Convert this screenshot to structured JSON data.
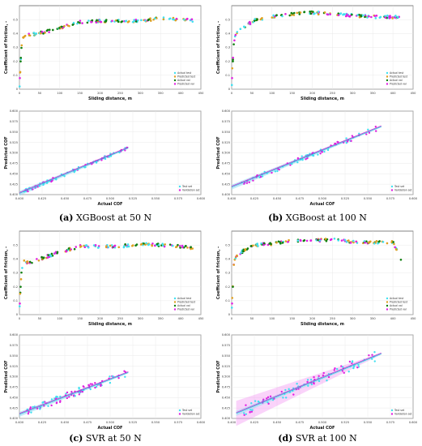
{
  "captions": [
    {
      "letter": "(a)",
      "text": "XGBoost at 50 N"
    },
    {
      "letter": "(b)",
      "text": "XGBoost at 100 N"
    },
    {
      "letter": "(c)",
      "text": "SVR at 50 N"
    },
    {
      "letter": "(d)",
      "text": "SVR at 100 N"
    }
  ],
  "colors": {
    "actual_test": "#40e0f0",
    "predicted_test": "#e0a020",
    "actual_val": "#108010",
    "predicted_val": "#e020e0"
  },
  "chart_data": [
    {
      "type": "scatter",
      "id": "a-top",
      "xlabel": "Sliding distance, m",
      "ylabel": "Coefficient of friction, -",
      "xlim": [
        0,
        450
      ],
      "ylim": [
        0,
        0.6
      ],
      "xticks": [
        "0",
        "50",
        "100",
        "150",
        "200",
        "250",
        "300",
        "350",
        "400",
        "450"
      ],
      "yticks": [
        "0",
        "0.1",
        "0.2",
        "0.3",
        "0.4",
        "0.5"
      ],
      "legend": [
        "Actual test",
        "Predicted test",
        "Actual val",
        "Predicted val"
      ],
      "legend_position": "bottom-right",
      "profile": [
        [
          0,
          0.02
        ],
        [
          2,
          0.12
        ],
        [
          5,
          0.3
        ],
        [
          10,
          0.38
        ],
        [
          25,
          0.39
        ],
        [
          60,
          0.41
        ],
        [
          100,
          0.44
        ],
        [
          140,
          0.48
        ],
        [
          200,
          0.49
        ],
        [
          250,
          0.49
        ],
        [
          300,
          0.49
        ],
        [
          350,
          0.51
        ],
        [
          400,
          0.5
        ],
        [
          430,
          0.495
        ]
      ]
    },
    {
      "type": "scatter",
      "id": "b-top",
      "xlabel": "Sliding distance, m",
      "ylabel": "Coefficient of friction, -",
      "xlim": [
        0,
        450
      ],
      "ylim": [
        0,
        0.6
      ],
      "xticks": [
        "0",
        "50",
        "100",
        "150",
        "200",
        "250",
        "300",
        "350",
        "400",
        "450"
      ],
      "yticks": [
        "0",
        "0.1",
        "0.2",
        "0.3",
        "0.4",
        "0.5"
      ],
      "legend": [
        "Actual test",
        "Predicted test",
        "Actual val",
        "Predicted val"
      ],
      "legend_position": "bottom-right",
      "profile": [
        [
          0,
          0.03
        ],
        [
          2,
          0.15
        ],
        [
          5,
          0.32
        ],
        [
          10,
          0.4
        ],
        [
          30,
          0.45
        ],
        [
          60,
          0.5
        ],
        [
          100,
          0.52
        ],
        [
          150,
          0.54
        ],
        [
          200,
          0.55
        ],
        [
          250,
          0.54
        ],
        [
          300,
          0.53
        ],
        [
          350,
          0.52
        ],
        [
          400,
          0.52
        ],
        [
          420,
          0.52
        ]
      ]
    },
    {
      "type": "regression",
      "id": "a-bottom",
      "xlabel": "Actual COF",
      "ylabel": "Predicted COF",
      "xlim": [
        0.4,
        0.6
      ],
      "ylim": [
        0.4,
        0.6
      ],
      "xticks": [
        "0.400",
        "0.425",
        "0.450",
        "0.475",
        "0.500",
        "0.525",
        "0.550",
        "0.575",
        "0.600"
      ],
      "yticks": [
        "0.400",
        "0.425",
        "0.450",
        "0.475",
        "0.500",
        "0.525",
        "0.550",
        "0.575",
        "0.600"
      ],
      "legend": [
        "Test set",
        "Validation set"
      ],
      "legend_position": "bottom-right",
      "fit": {
        "x0": 0.4,
        "x1": 0.52,
        "y0": 0.403,
        "y1": 0.512
      },
      "cloud": {
        "x0": 0.405,
        "x1": 0.52,
        "spread": 0.004
      }
    },
    {
      "type": "regression",
      "id": "b-bottom",
      "xlabel": "Actual COF",
      "ylabel": "Predicted COF",
      "xlim": [
        0.4,
        0.6
      ],
      "ylim": [
        0.4,
        0.6
      ],
      "xticks": [
        "0.400",
        "0.425",
        "0.450",
        "0.475",
        "0.500",
        "0.525",
        "0.550",
        "0.575",
        "0.600"
      ],
      "yticks": [
        "0.400",
        "0.425",
        "0.450",
        "0.475",
        "0.500",
        "0.525",
        "0.550",
        "0.575",
        "0.600"
      ],
      "legend": [
        "Test set",
        "Validation set"
      ],
      "legend_position": "bottom-right",
      "fit": {
        "x0": 0.4,
        "x1": 0.565,
        "y0": 0.418,
        "y1": 0.563
      },
      "cloud": {
        "x0": 0.41,
        "x1": 0.56,
        "spread": 0.006
      }
    },
    {
      "type": "scatter",
      "id": "c-top",
      "xlabel": "Sliding distance, m",
      "ylabel": "Coefficient of friction, -",
      "xlim": [
        0,
        450
      ],
      "ylim": [
        0,
        0.6
      ],
      "xticks": [
        "0",
        "50",
        "100",
        "150",
        "200",
        "250",
        "300",
        "350",
        "400",
        "450"
      ],
      "yticks": [
        "0",
        "0.1",
        "0.2",
        "0.3",
        "0.4",
        "0.5"
      ],
      "legend": [
        "Actual test",
        "Predicted test",
        "Actual val",
        "Predicted val"
      ],
      "legend_position": "bottom-right",
      "profile": [
        [
          0,
          0.06
        ],
        [
          2,
          0.15
        ],
        [
          5,
          0.3
        ],
        [
          10,
          0.38
        ],
        [
          25,
          0.37
        ],
        [
          60,
          0.41
        ],
        [
          100,
          0.45
        ],
        [
          150,
          0.49
        ],
        [
          200,
          0.49
        ],
        [
          250,
          0.49
        ],
        [
          300,
          0.51
        ],
        [
          350,
          0.5
        ],
        [
          400,
          0.49
        ],
        [
          430,
          0.48
        ]
      ]
    },
    {
      "type": "scatter",
      "id": "d-top",
      "xlabel": "Sliding distance, m",
      "ylabel": "Coefficient of friction, -",
      "xlim": [
        0,
        450
      ],
      "ylim": [
        0,
        0.6
      ],
      "xticks": [
        "0",
        "50",
        "100",
        "150",
        "200",
        "250",
        "300",
        "350",
        "400",
        "450"
      ],
      "yticks": [
        "0",
        "0.1",
        "0.2",
        "0.3",
        "0.4",
        "0.5"
      ],
      "legend": [
        "Actual test",
        "Predicted test",
        "Actual val",
        "Predicted val"
      ],
      "legend_position": "bottom-right",
      "profile": [
        [
          0,
          0.05
        ],
        [
          2,
          0.12
        ],
        [
          5,
          0.35
        ],
        [
          10,
          0.42
        ],
        [
          30,
          0.46
        ],
        [
          60,
          0.5
        ],
        [
          100,
          0.51
        ],
        [
          150,
          0.53
        ],
        [
          200,
          0.53
        ],
        [
          250,
          0.54
        ],
        [
          300,
          0.52
        ],
        [
          350,
          0.52
        ],
        [
          400,
          0.52
        ],
        [
          420,
          0.4
        ]
      ]
    },
    {
      "type": "regression",
      "id": "c-bottom",
      "xlabel": "Actual COF",
      "ylabel": "Predicted COF",
      "xlim": [
        0.4,
        0.6
      ],
      "ylim": [
        0.4,
        0.6
      ],
      "xticks": [
        "0.400",
        "0.425",
        "0.450",
        "0.475",
        "0.500",
        "0.525",
        "0.550",
        "0.575",
        "0.600"
      ],
      "yticks": [
        "0.400",
        "0.425",
        "0.450",
        "0.475",
        "0.500",
        "0.525",
        "0.550",
        "0.575",
        "0.600"
      ],
      "legend": [
        "Test set",
        "Validation set"
      ],
      "legend_position": "bottom-right",
      "fit": {
        "x0": 0.4,
        "x1": 0.52,
        "y0": 0.41,
        "y1": 0.51
      },
      "cloud": {
        "x0": 0.405,
        "x1": 0.52,
        "spread": 0.009
      }
    },
    {
      "type": "regression",
      "id": "d-bottom",
      "xlabel": "Actual COF",
      "ylabel": "Predicted COF",
      "xlim": [
        0.4,
        0.6
      ],
      "ylim": [
        0.4,
        0.6
      ],
      "xticks": [
        "0.400",
        "0.425",
        "0.450",
        "0.475",
        "0.500",
        "0.525",
        "0.550",
        "0.575",
        "0.600"
      ],
      "yticks": [
        "0.400",
        "0.425",
        "0.450",
        "0.475",
        "0.500",
        "0.525",
        "0.550",
        "0.575",
        "0.600"
      ],
      "legend": [
        "Test set",
        "Validation set"
      ],
      "legend_position": "bottom-right",
      "fit": {
        "x0": 0.405,
        "x1": 0.565,
        "y0": 0.412,
        "y1": 0.555
      },
      "cloud": {
        "x0": 0.41,
        "x1": 0.56,
        "spread": 0.012
      },
      "band": "wide"
    }
  ]
}
